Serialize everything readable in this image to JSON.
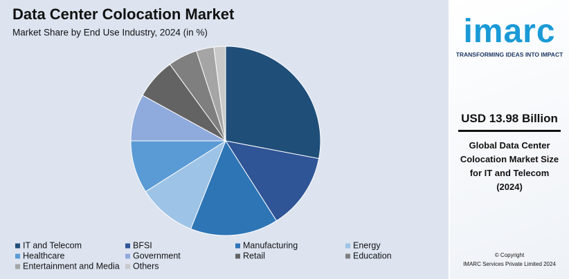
{
  "chart_data": {
    "type": "pie",
    "title": "Data Center Colocation Market",
    "subtitle": "Market Share by End Use Industry, 2024 (in %)",
    "categories": [
      "IT and Telecom",
      "BFSI",
      "Manufacturing",
      "Energy",
      "Healthcare",
      "Government",
      "Retail",
      "Education",
      "Entertainment and Media",
      "Others"
    ],
    "values": [
      28,
      13,
      15,
      10,
      9,
      8,
      7,
      5,
      3,
      2
    ],
    "colors": [
      "#1f4e79",
      "#2f5597",
      "#2e75b6",
      "#9dc3e6",
      "#5b9bd5",
      "#8faadc",
      "#636363",
      "#7f7f7f",
      "#a5a5a5",
      "#c9c9c9"
    ]
  },
  "sidebar": {
    "logo": "imarc",
    "tagline": "TRANSFORMING IDEAS INTO IMPACT",
    "headline": "USD 13.98 Billion",
    "description": "Global Data Center Colocation Market Size for IT and Telecom (2024)",
    "copyright": "© Copyright",
    "company": "IMARC Services Private Limited 2024"
  }
}
